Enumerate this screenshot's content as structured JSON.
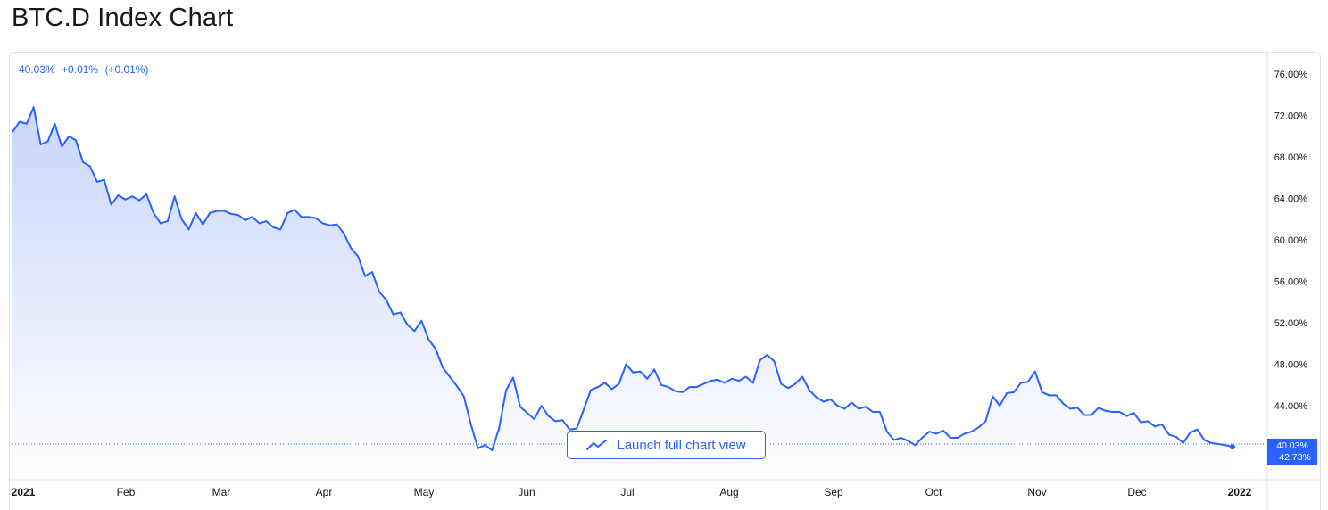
{
  "page": {
    "title": "BTC.D Index Chart"
  },
  "quote": {
    "price": "40.03%",
    "change": "+0.01%",
    "change_pct": "(+0.01%)"
  },
  "badge": {
    "price": "40.03%",
    "change": "−42.73%"
  },
  "launch_button": {
    "label": "Launch full chart view",
    "icon": "trend-line-icon"
  },
  "colors": {
    "line": "#2962ff",
    "fill_top": "#c9d6fb",
    "fill_bottom": "#ffffff",
    "axis_border": "#e0e3eb"
  },
  "chart_data": {
    "type": "area",
    "title": "",
    "xlabel": "",
    "ylabel": "",
    "ylim": [
      36.0,
      77.0
    ],
    "x_ticks": [
      "2021",
      "Feb",
      "Mar",
      "Apr",
      "May",
      "Jun",
      "Jul",
      "Aug",
      "Sep",
      "Oct",
      "Nov",
      "Dec",
      "2022"
    ],
    "y_ticks": [
      "76.00%",
      "72.00%",
      "68.00%",
      "64.00%",
      "60.00%",
      "56.00%",
      "52.00%",
      "48.00%",
      "44.00%"
    ],
    "grid": false,
    "series": [
      {
        "values": [
          70.4,
          71.4,
          71.2,
          72.8,
          69.2,
          69.5,
          71.2,
          69.0,
          70.0,
          69.6,
          67.5,
          67.1,
          65.6,
          65.8,
          63.4,
          64.3,
          63.9,
          64.2,
          63.8,
          64.4,
          62.6,
          61.6,
          61.8,
          64.2,
          62.0,
          61.0,
          62.6,
          61.5,
          62.6,
          62.8,
          62.8,
          62.5,
          62.4,
          61.9,
          62.2,
          61.6,
          61.8,
          61.2,
          61.0,
          62.6,
          62.9,
          62.2,
          62.2,
          62.1,
          61.6,
          61.4,
          61.5,
          60.6,
          59.2,
          58.4,
          56.5,
          56.9,
          55.0,
          54.2,
          52.8,
          53.0,
          51.8,
          51.2,
          52.2,
          50.4,
          49.5,
          47.7,
          46.8,
          45.9,
          44.9,
          42.2,
          39.9,
          40.2,
          39.7,
          41.8,
          45.5,
          46.7,
          43.9,
          43.3,
          42.7,
          44.0,
          43.0,
          42.5,
          42.6,
          41.7,
          41.8,
          43.6,
          45.5,
          45.8,
          46.2,
          45.6,
          46.1,
          48.0,
          47.2,
          47.3,
          46.6,
          47.5,
          46.0,
          45.8,
          45.4,
          45.3,
          45.8,
          45.8,
          46.1,
          46.4,
          46.5,
          46.2,
          46.6,
          46.4,
          46.8,
          46.2,
          48.4,
          48.9,
          48.3,
          46.1,
          45.7,
          46.1,
          46.8,
          45.5,
          44.8,
          44.4,
          44.6,
          44.0,
          43.7,
          44.3,
          43.7,
          43.9,
          43.4,
          43.4,
          41.5,
          40.7,
          40.9,
          40.6,
          40.2,
          40.9,
          41.5,
          41.3,
          41.6,
          40.9,
          40.9,
          41.3,
          41.5,
          41.9,
          42.5,
          44.9,
          44.0,
          45.2,
          45.3,
          46.2,
          46.3,
          47.3,
          45.3,
          45.0,
          45.0,
          44.2,
          43.7,
          43.8,
          43.1,
          43.1,
          43.8,
          43.5,
          43.4,
          43.4,
          43.0,
          43.3,
          42.4,
          42.5,
          42.0,
          42.2,
          41.2,
          41.0,
          40.4,
          41.4,
          41.7,
          40.7,
          40.4,
          40.3,
          40.2,
          40.03
        ]
      }
    ]
  }
}
